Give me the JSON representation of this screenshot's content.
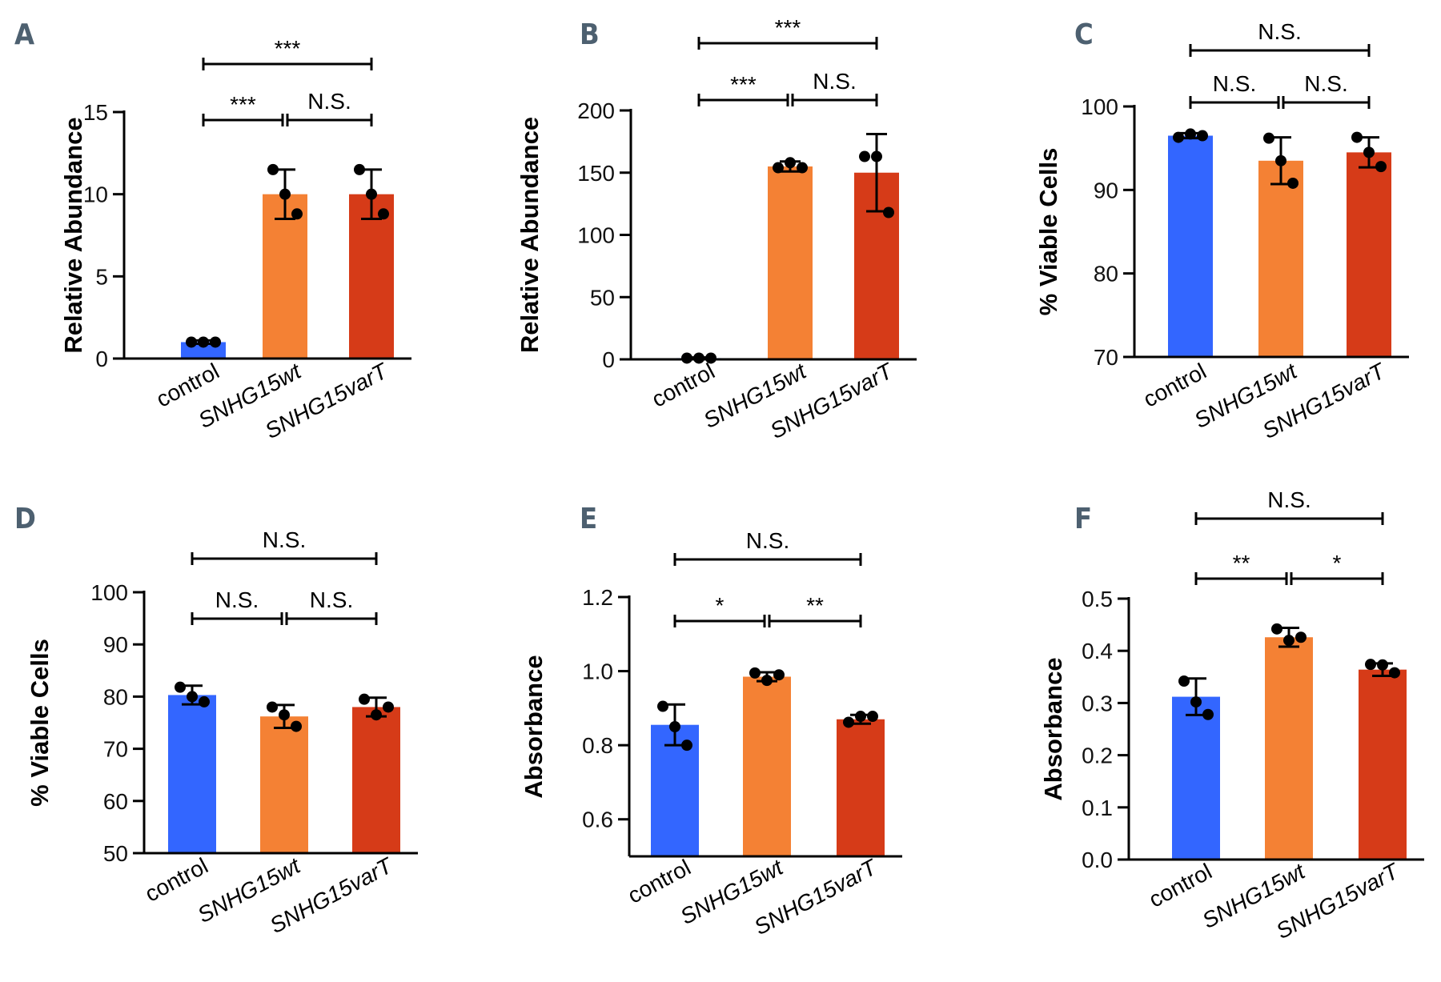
{
  "colors": {
    "control": "#3366ff",
    "wt": "#f48134",
    "varT": "#d63b18",
    "axis": "#000000",
    "letter": "#4d6070"
  },
  "chart_data": [
    {
      "panel": "A",
      "type": "bar",
      "ylabel": "Relative Abundance",
      "ylim": [
        0,
        15
      ],
      "yticks": [
        0,
        5,
        10,
        15
      ],
      "yticklabels": [
        "0",
        "5",
        "10",
        "15"
      ],
      "categories": [
        "control",
        "SNHG15wt",
        "SNHG15varT"
      ],
      "italic": [
        false,
        true,
        true
      ],
      "values": [
        1.0,
        10.0,
        10.0
      ],
      "errors": [
        0.1,
        1.5,
        1.5
      ],
      "points": [
        [
          1.0,
          1.0,
          1.0
        ],
        [
          11.5,
          10.0,
          8.8
        ],
        [
          11.5,
          10.0,
          8.8
        ]
      ],
      "significance": [
        {
          "from": 0,
          "to": 1,
          "label": "***"
        },
        {
          "from": 1,
          "to": 2,
          "label": "N.S."
        },
        {
          "from": 0,
          "to": 2,
          "label": "***"
        }
      ]
    },
    {
      "panel": "B",
      "type": "bar",
      "ylabel": "Relative Abundance",
      "ylim": [
        0,
        200
      ],
      "yticks": [
        0,
        50,
        100,
        150,
        200
      ],
      "yticklabels": [
        "0",
        "50",
        "100",
        "150",
        "200"
      ],
      "categories": [
        "control",
        "SNHG15wt",
        "SNHG15varT"
      ],
      "italic": [
        false,
        true,
        true
      ],
      "values": [
        1,
        155,
        150
      ],
      "errors": [
        0.5,
        4,
        31
      ],
      "points": [
        [
          1,
          1,
          1
        ],
        [
          154,
          158,
          154
        ],
        [
          163,
          163,
          118
        ]
      ],
      "significance": [
        {
          "from": 0,
          "to": 1,
          "label": "***"
        },
        {
          "from": 1,
          "to": 2,
          "label": "N.S."
        },
        {
          "from": 0,
          "to": 2,
          "label": "***"
        }
      ]
    },
    {
      "panel": "C",
      "type": "bar",
      "ylabel": "% Viable Cells",
      "ylim": [
        70,
        100
      ],
      "yticks": [
        70,
        80,
        90,
        100
      ],
      "yticklabels": [
        "70",
        "80",
        "90",
        "100"
      ],
      "categories": [
        "control",
        "SNHG15wt",
        "SNHG15varT"
      ],
      "italic": [
        false,
        true,
        true
      ],
      "values": [
        96.5,
        93.5,
        94.5
      ],
      "errors": [
        0.3,
        2.8,
        1.8
      ],
      "points": [
        [
          96.3,
          96.7,
          96.5
        ],
        [
          96.2,
          93.5,
          90.8
        ],
        [
          96.3,
          94.5,
          92.8
        ]
      ],
      "significance": [
        {
          "from": 0,
          "to": 1,
          "label": "N.S."
        },
        {
          "from": 1,
          "to": 2,
          "label": "N.S."
        },
        {
          "from": 0,
          "to": 2,
          "label": "N.S."
        }
      ]
    },
    {
      "panel": "D",
      "type": "bar",
      "ylabel": "% Viable Cells",
      "ylim": [
        50,
        100
      ],
      "yticks": [
        50,
        60,
        70,
        80,
        90,
        100
      ],
      "yticklabels": [
        "50",
        "60",
        "70",
        "80",
        "90",
        "100"
      ],
      "categories": [
        "control",
        "SNHG15wt",
        "SNHG15varT"
      ],
      "italic": [
        false,
        true,
        true
      ],
      "values": [
        80.3,
        76.2,
        78.0
      ],
      "errors": [
        1.8,
        2.2,
        1.8
      ],
      "points": [
        [
          81.8,
          80.0,
          79.0
        ],
        [
          78.0,
          76.5,
          74.3
        ],
        [
          79.5,
          76.5,
          78.0
        ]
      ],
      "significance": [
        {
          "from": 0,
          "to": 1,
          "label": "N.S."
        },
        {
          "from": 1,
          "to": 2,
          "label": "N.S."
        },
        {
          "from": 0,
          "to": 2,
          "label": "N.S."
        }
      ]
    },
    {
      "panel": "E",
      "type": "bar",
      "ylabel": "Absorbance",
      "ylim": [
        0.5,
        1.2
      ],
      "yticks": [
        0.6,
        0.8,
        1.0,
        1.2
      ],
      "yticklabels": [
        "0.6",
        "0.8",
        "1.0",
        "1.2"
      ],
      "categories": [
        "control",
        "SNHG15wt",
        "SNHG15varT"
      ],
      "italic": [
        false,
        true,
        true
      ],
      "values": [
        0.855,
        0.985,
        0.87
      ],
      "errors": [
        0.055,
        0.012,
        0.012
      ],
      "points": [
        [
          0.905,
          0.85,
          0.8
        ],
        [
          0.995,
          0.975,
          0.99
        ],
        [
          0.862,
          0.878,
          0.878
        ]
      ],
      "significance": [
        {
          "from": 0,
          "to": 1,
          "label": "*"
        },
        {
          "from": 1,
          "to": 2,
          "label": "**"
        },
        {
          "from": 0,
          "to": 2,
          "label": "N.S."
        }
      ]
    },
    {
      "panel": "F",
      "type": "bar",
      "ylabel": "Absorbance",
      "ylim": [
        0.0,
        0.5
      ],
      "yticks": [
        0.0,
        0.1,
        0.2,
        0.3,
        0.4,
        0.5
      ],
      "yticklabels": [
        "0.0",
        "0.1",
        "0.2",
        "0.3",
        "0.4",
        "0.5"
      ],
      "categories": [
        "control",
        "SNHG15wt",
        "SNHG15varT"
      ],
      "italic": [
        false,
        true,
        true
      ],
      "values": [
        0.312,
        0.426,
        0.364
      ],
      "errors": [
        0.035,
        0.018,
        0.012
      ],
      "points": [
        [
          0.342,
          0.302,
          0.278
        ],
        [
          0.442,
          0.42,
          0.426
        ],
        [
          0.374,
          0.373,
          0.358
        ]
      ],
      "significance": [
        {
          "from": 0,
          "to": 1,
          "label": "**"
        },
        {
          "from": 1,
          "to": 2,
          "label": "*"
        },
        {
          "from": 0,
          "to": 2,
          "label": "N.S."
        }
      ]
    }
  ]
}
